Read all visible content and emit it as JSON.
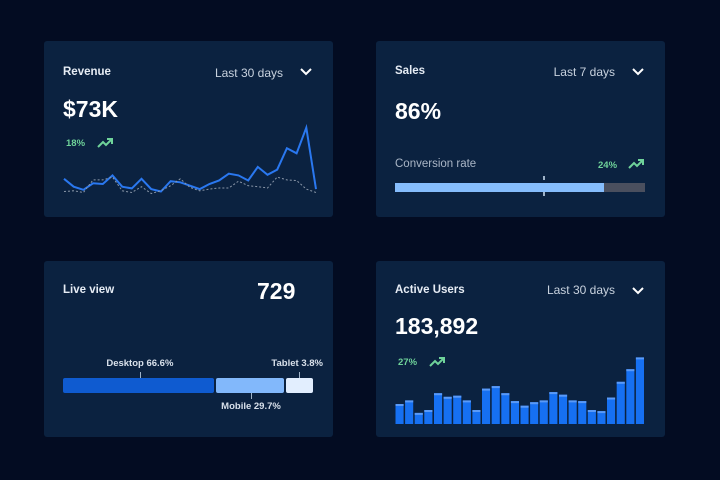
{
  "colors": {
    "background": "#030c22",
    "card": "#0b2240",
    "accent": "#1a6ef5",
    "positive": "#6fd39a"
  },
  "revenue": {
    "title": "Revenue",
    "range": "Last 30 days",
    "value": "$73K",
    "change": "18%",
    "change_icon": "trend-up-icon",
    "chart_data": {
      "type": "line",
      "series": [
        {
          "values": [
            65,
            42,
            33,
            52,
            50,
            75,
            42,
            37,
            65,
            35,
            28,
            58,
            55,
            45,
            35,
            50,
            60,
            80,
            75,
            60,
            100,
            77,
            92,
            155,
            140,
            215,
            35
          ]
        },
        {
          "style": "dotted",
          "values": [
            28,
            30,
            25,
            62,
            62,
            70,
            30,
            25,
            42,
            22,
            30,
            45,
            65,
            40,
            30,
            35,
            38,
            38,
            58,
            45,
            42,
            38,
            70,
            62,
            60,
            35,
            25
          ]
        }
      ]
    }
  },
  "sales": {
    "title": "Sales",
    "range": "Last 7 days",
    "value": "86%",
    "metric_label": "Conversion rate",
    "change": "24%",
    "change_icon": "trend-up-icon",
    "fill_percent": 86,
    "target_percent": 59
  },
  "live": {
    "title": "Live view",
    "value": "729",
    "segments": [
      {
        "label": "Desktop 66.6%",
        "percent": 66.6,
        "color": "#0f5bd0"
      },
      {
        "label": "Mobile 29.7%",
        "percent": 29.7,
        "color": "#82b8fb"
      },
      {
        "label": "Tablet 3.8%",
        "percent": 3.8,
        "color": "#e2eefe"
      }
    ]
  },
  "users": {
    "title": "Active Users",
    "range": "Last 30 days",
    "value": "183,892",
    "change": "27%",
    "change_icon": "trend-up-icon",
    "chart_data": {
      "type": "bar",
      "values": [
        56,
        66,
        31,
        39,
        86,
        76,
        79,
        66,
        39,
        99,
        106,
        86,
        64,
        51,
        61,
        66,
        89,
        82,
        66,
        64,
        39,
        36,
        74,
        118,
        153,
        186
      ]
    }
  }
}
